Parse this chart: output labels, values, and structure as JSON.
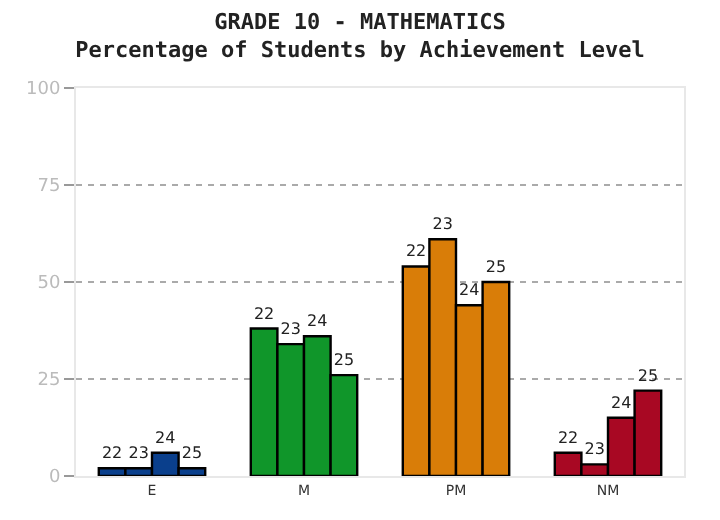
{
  "chart_data": {
    "type": "bar",
    "title": "GRADE 10 - MATHEMATICS",
    "subtitle": "Percentage of Students by Achievement Level",
    "categories": [
      "E",
      "M",
      "PM",
      "NM"
    ],
    "series": [
      {
        "name": "22",
        "colors": [
          "#0a3f8c",
          "#10962a",
          "#d97d08",
          "#a80823"
        ],
        "values": [
          2,
          38,
          54,
          6
        ]
      },
      {
        "name": "23",
        "colors": [
          "#0a3f8c",
          "#10962a",
          "#d97d08",
          "#a80823"
        ],
        "values": [
          2,
          34,
          61,
          3
        ]
      },
      {
        "name": "24",
        "colors": [
          "#0a3f8c",
          "#10962a",
          "#d97d08",
          "#a80823"
        ],
        "values": [
          6,
          36,
          44,
          15
        ]
      },
      {
        "name": "25",
        "colors": [
          "#0a3f8c",
          "#10962a",
          "#d97d08",
          "#a80823"
        ],
        "values": [
          2,
          26,
          50,
          22
        ]
      }
    ],
    "ylim": [
      0,
      100
    ],
    "yticks": [
      0,
      25,
      50,
      75,
      100
    ],
    "grid": "y"
  }
}
